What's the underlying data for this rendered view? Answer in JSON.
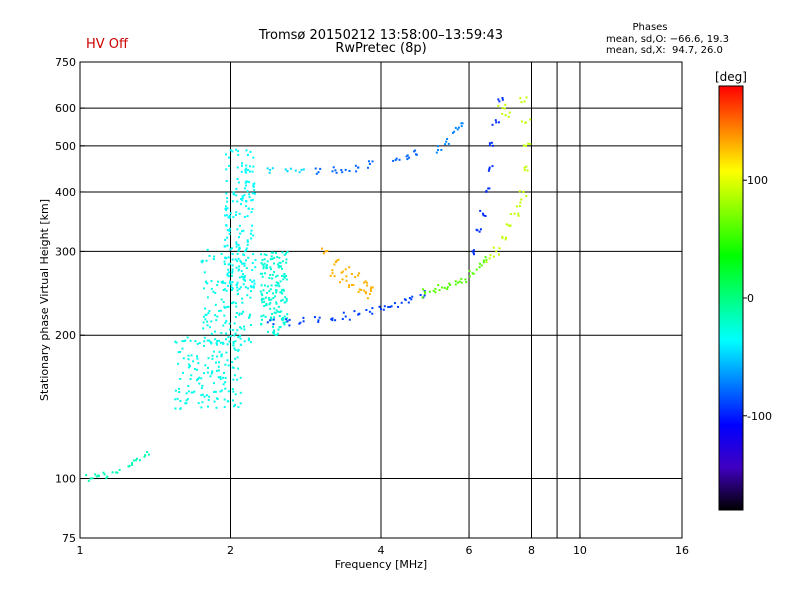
{
  "status": {
    "label": "HV Off",
    "color": "#cc0000"
  },
  "header": {
    "title": "Tromsø 20150212 13:58:00–13:59:43",
    "subtitle": "RwPretec (8p)"
  },
  "phase_info": {
    "title": "Phases",
    "line1": "mean, sd,O: −66.6, 19.3",
    "line2": "mean, sd,X:  94.7, 26.0"
  },
  "chart_data": {
    "type": "scatter",
    "xlabel": "Frequency [MHz]",
    "ylabel": "Stationary phase Virtual Height [km]",
    "xscale": "log",
    "yscale": "log",
    "xlim": [
      1,
      16
    ],
    "ylim": [
      75,
      750
    ],
    "xticks": [
      1,
      2,
      4,
      6,
      8,
      10,
      16
    ],
    "yticks": [
      75,
      100,
      200,
      300,
      400,
      500,
      600,
      750
    ],
    "xgrid": [
      2,
      4,
      6,
      8,
      9,
      10
    ],
    "ygrid": [
      100,
      200,
      300,
      400,
      500,
      600
    ],
    "grid": true,
    "colorbar": {
      "label": "[deg]",
      "range": [
        -180,
        180
      ],
      "ticks": [
        -100,
        0,
        100
      ],
      "colors": [
        "#ff0000",
        "#ff8000",
        "#ffff00",
        "#80ff00",
        "#00ff00",
        "#00ff80",
        "#00ffff",
        "#0080ff",
        "#0000ff",
        "#4000c0",
        "#000000"
      ]
    },
    "series": [
      {
        "phase": -15,
        "points": [
          [
            1.05,
            100
          ],
          [
            1.08,
            101
          ],
          [
            1.12,
            102
          ],
          [
            1.18,
            103
          ],
          [
            1.25,
            106
          ],
          [
            1.3,
            110
          ],
          [
            1.35,
            112
          ]
        ]
      },
      {
        "phase": -30,
        "cloud": {
          "f": [
            1.55,
            2.1
          ],
          "h": [
            140,
            200
          ]
        }
      },
      {
        "phase": -30,
        "cloud": {
          "f": [
            1.75,
            2.2
          ],
          "h": [
            190,
            310
          ]
        }
      },
      {
        "phase": -35,
        "cloud": {
          "f": [
            1.95,
            2.25
          ],
          "h": [
            250,
            500
          ]
        }
      },
      {
        "phase": -25,
        "cloud": {
          "f": [
            2.3,
            2.6
          ],
          "h": [
            200,
            300
          ]
        }
      },
      {
        "phase": -90,
        "points": [
          [
            2.4,
            215
          ],
          [
            2.6,
            214
          ],
          [
            2.8,
            214
          ],
          [
            3.0,
            215
          ],
          [
            3.2,
            217
          ],
          [
            3.4,
            219
          ],
          [
            3.6,
            221
          ],
          [
            3.8,
            224
          ],
          [
            4.0,
            227
          ],
          [
            4.2,
            230
          ],
          [
            4.4,
            234
          ],
          [
            4.6,
            238
          ],
          [
            4.8,
            243
          ]
        ]
      },
      {
        "phase": 60,
        "points": [
          [
            4.9,
            245
          ],
          [
            5.1,
            248
          ],
          [
            5.3,
            252
          ],
          [
            5.5,
            255
          ],
          [
            5.7,
            258
          ],
          [
            5.9,
            262
          ],
          [
            6.1,
            270
          ],
          [
            6.3,
            278
          ],
          [
            6.5,
            288
          ]
        ]
      },
      {
        "phase": 130,
        "points": [
          [
            3.1,
            300
          ],
          [
            3.25,
            285
          ],
          [
            3.4,
            275
          ],
          [
            3.55,
            265
          ],
          [
            3.7,
            258
          ],
          [
            3.85,
            252
          ],
          [
            3.2,
            270
          ],
          [
            3.35,
            262
          ],
          [
            3.5,
            255
          ],
          [
            3.65,
            249
          ],
          [
            3.8,
            244
          ]
        ]
      },
      {
        "phase": -45,
        "points": [
          [
            2.4,
            445
          ],
          [
            2.6,
            442
          ],
          [
            2.75,
            440
          ]
        ]
      },
      {
        "phase": -80,
        "points": [
          [
            3.0,
            440
          ],
          [
            3.2,
            442
          ],
          [
            3.4,
            445
          ],
          [
            3.6,
            450
          ],
          [
            3.8,
            458
          ],
          [
            4.3,
            470
          ],
          [
            4.5,
            475
          ],
          [
            4.7,
            480
          ]
        ]
      },
      {
        "phase": -70,
        "points": [
          [
            5.2,
            490
          ],
          [
            5.4,
            510
          ],
          [
            5.6,
            535
          ],
          [
            5.8,
            550
          ]
        ]
      },
      {
        "phase": -95,
        "points": [
          [
            6.1,
            300
          ],
          [
            6.3,
            330
          ],
          [
            6.4,
            360
          ],
          [
            6.5,
            400
          ],
          [
            6.6,
            450
          ],
          [
            6.7,
            500
          ],
          [
            6.8,
            560
          ],
          [
            6.9,
            620
          ]
        ]
      },
      {
        "phase": 90,
        "points": [
          [
            6.6,
            290
          ],
          [
            6.8,
            300
          ],
          [
            7.0,
            320
          ],
          [
            7.2,
            340
          ],
          [
            7.4,
            360
          ],
          [
            7.6,
            380
          ],
          [
            7.7,
            400
          ],
          [
            7.75,
            450
          ],
          [
            7.8,
            500
          ],
          [
            7.8,
            560
          ],
          [
            7.75,
            620
          ],
          [
            7.1,
            580
          ],
          [
            7.0,
            600
          ]
        ]
      }
    ]
  }
}
